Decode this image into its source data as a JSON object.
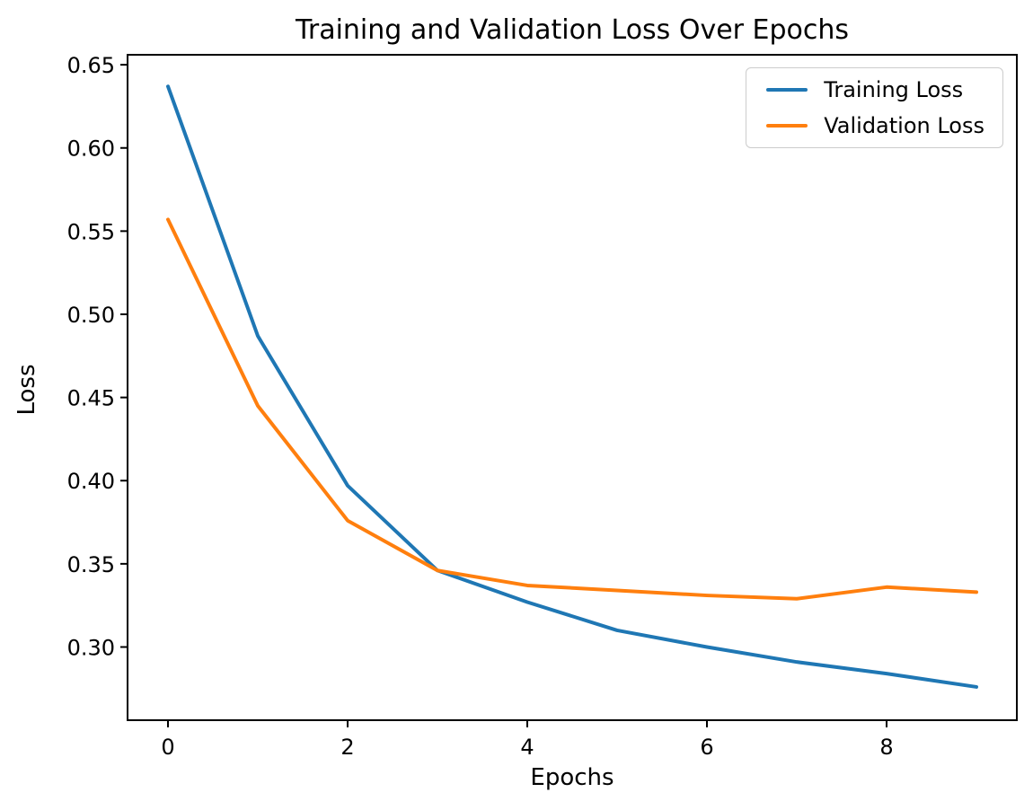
{
  "chart_data": {
    "type": "line",
    "title": "Training and Validation Loss Over Epochs",
    "xlabel": "Epochs",
    "ylabel": "Loss",
    "x": [
      0,
      1,
      2,
      3,
      4,
      5,
      6,
      7,
      8,
      9
    ],
    "series": [
      {
        "name": "Training Loss",
        "color": "#1f77b4",
        "values": [
          0.637,
          0.487,
          0.397,
          0.346,
          0.327,
          0.31,
          0.3,
          0.291,
          0.284,
          0.276
        ]
      },
      {
        "name": "Validation Loss",
        "color": "#ff7f0e",
        "values": [
          0.557,
          0.445,
          0.376,
          0.346,
          0.337,
          0.334,
          0.331,
          0.329,
          0.336,
          0.333
        ]
      }
    ],
    "xticks": [
      0,
      2,
      4,
      6,
      8
    ],
    "xtick_labels": [
      "0",
      "2",
      "4",
      "6",
      "8"
    ],
    "yticks": [
      0.3,
      0.35,
      0.4,
      0.45,
      0.5,
      0.55,
      0.6,
      0.65
    ],
    "ytick_labels": [
      "0.30",
      "0.35",
      "0.40",
      "0.45",
      "0.50",
      "0.55",
      "0.60",
      "0.65"
    ],
    "xlim": [
      -0.45,
      9.45
    ],
    "ylim": [
      0.256,
      0.656
    ],
    "grid": false,
    "legend_position": "upper right",
    "line_width": 4,
    "axis_color": "#000000"
  }
}
